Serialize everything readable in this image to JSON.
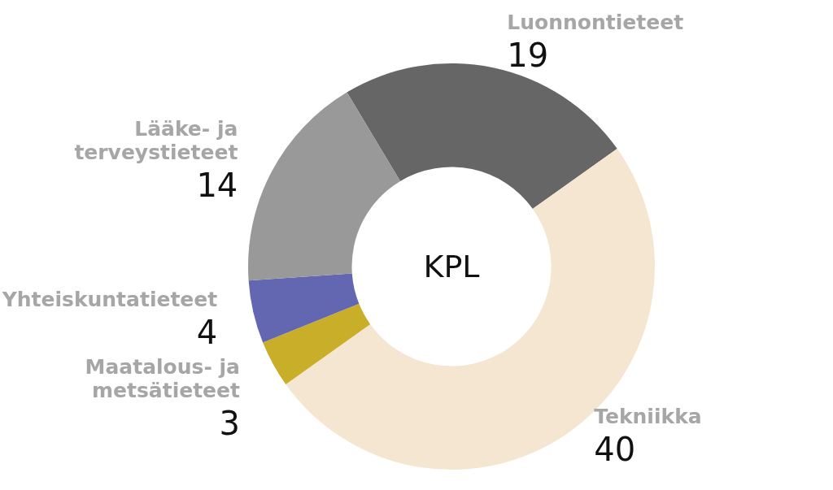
{
  "chart_data": {
    "type": "donut",
    "title": "KPL",
    "categories": [
      "Luonnontieteet",
      "Tekniikka",
      "Maatalous- ja metsätieteet",
      "Yhteiskuntatieteet",
      "Lääke- ja terveystieteet"
    ],
    "values": [
      19,
      40,
      3,
      4,
      14
    ],
    "colors": [
      "#666666",
      "#f5e6d1",
      "#c9ae2a",
      "#6366b0",
      "#999999"
    ],
    "data_labels": true
  }
}
